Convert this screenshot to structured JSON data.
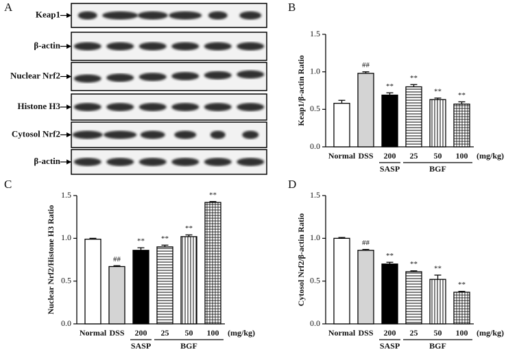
{
  "blot": {
    "panel_label": "A",
    "rows": [
      "Keap1",
      "β-actin",
      "Nuclear Nrf2",
      "Histone H3",
      "Cytosol Nrf2",
      "β-actin"
    ]
  },
  "chart_data": [
    {
      "type": "bar",
      "panel_label": "B",
      "ylabel": "Keap1/β-actin Ratio",
      "categories": [
        "Normal",
        "DSS",
        "200",
        "25",
        "50",
        "100"
      ],
      "group_labels": [
        "SASP",
        "BGF"
      ],
      "unit_label": "(mg/kg)",
      "values": [
        0.58,
        0.98,
        0.69,
        0.8,
        0.63,
        0.57
      ],
      "errors": [
        0.04,
        0.02,
        0.03,
        0.03,
        0.02,
        0.03
      ],
      "annotations": [
        null,
        "##",
        "**",
        "**",
        "**",
        "**"
      ],
      "colors": [
        "#ffffff",
        "#d4d4d4",
        "#000000",
        "#ffffff",
        "#ffffff",
        "#ffffff"
      ],
      "patterns": [
        "none",
        "none",
        "none",
        "horizontal",
        "vertical",
        "grid"
      ],
      "ylim": [
        0,
        1.5
      ],
      "yticks": [
        {
          "value": 0,
          "label": "0.0"
        },
        0.5,
        {
          "value": 1,
          "label": "1.0"
        },
        1.5
      ]
    },
    {
      "type": "bar",
      "panel_label": "C",
      "ylabel": "Nuclear Nrf2/Histone H3 Ratio",
      "categories": [
        "Normal",
        "DSS",
        "200",
        "25",
        "50",
        "100"
      ],
      "group_labels": [
        "SASP",
        "BGF"
      ],
      "unit_label": "(mg/kg)",
      "values": [
        0.99,
        0.67,
        0.86,
        0.9,
        1.02,
        1.42
      ],
      "errors": [
        0.01,
        0.01,
        0.03,
        0.02,
        0.02,
        0.01
      ],
      "annotations": [
        null,
        "##",
        "**",
        "**",
        "**",
        "**"
      ],
      "colors": [
        "#ffffff",
        "#d4d4d4",
        "#000000",
        "#ffffff",
        "#ffffff",
        "#ffffff"
      ],
      "patterns": [
        "none",
        "none",
        "none",
        "horizontal",
        "vertical",
        "grid"
      ],
      "ylim": [
        0,
        1.5
      ],
      "yticks": [
        {
          "value": 0,
          "label": "0.0"
        },
        0.5,
        {
          "value": 1,
          "label": "1.0"
        },
        1.5
      ]
    },
    {
      "type": "bar",
      "panel_label": "D",
      "ylabel": "Cytosol Nrf2/β-actin Ratio",
      "categories": [
        "Normal",
        "DSS",
        "200",
        "25",
        "50",
        "100"
      ],
      "group_labels": [
        "SASP",
        "BGF"
      ],
      "unit_label": "(mg/kg)",
      "values": [
        1.0,
        0.86,
        0.7,
        0.61,
        0.52,
        0.37
      ],
      "errors": [
        0.01,
        0.01,
        0.02,
        0.01,
        0.05,
        0.01
      ],
      "annotations": [
        null,
        "##",
        "**",
        "**",
        "**",
        "**"
      ],
      "colors": [
        "#ffffff",
        "#d4d4d4",
        "#000000",
        "#ffffff",
        "#ffffff",
        "#ffffff"
      ],
      "patterns": [
        "none",
        "none",
        "none",
        "horizontal",
        "vertical",
        "grid"
      ],
      "ylim": [
        0,
        1.5
      ],
      "yticks": [
        {
          "value": 0,
          "label": "0.0"
        },
        0.5,
        {
          "value": 1,
          "label": "1.0"
        },
        1.5
      ]
    }
  ]
}
